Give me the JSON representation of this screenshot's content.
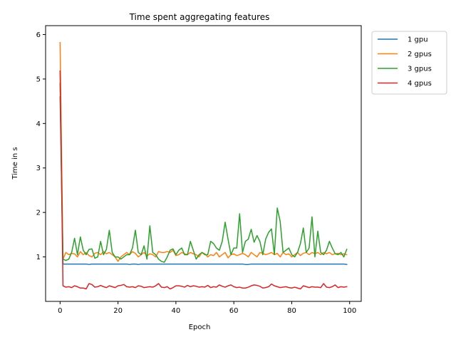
{
  "chart_data": {
    "type": "line",
    "title": "Time spent aggregating features",
    "xlabel": "Epoch",
    "ylabel": "Time in s",
    "xlim": [
      -5,
      104
    ],
    "ylim": [
      0,
      6.2
    ],
    "x_ticks": [
      0,
      20,
      40,
      60,
      80,
      100
    ],
    "y_ticks": [
      1,
      2,
      3,
      4,
      5,
      6
    ],
    "grid": false,
    "legend_position": "outside-top-right",
    "series": [
      {
        "name": "1 gpu",
        "color": "#1f77b4",
        "x": [
          0,
          1,
          2,
          3,
          4,
          5,
          6,
          7,
          8,
          9,
          10,
          11,
          12,
          13,
          14,
          15,
          16,
          17,
          18,
          19,
          20,
          21,
          22,
          23,
          24,
          25,
          26,
          27,
          28,
          29,
          30,
          31,
          32,
          33,
          34,
          35,
          36,
          37,
          38,
          39,
          40,
          41,
          42,
          43,
          44,
          45,
          46,
          47,
          48,
          49,
          50,
          51,
          52,
          53,
          54,
          55,
          56,
          57,
          58,
          59,
          60,
          61,
          62,
          63,
          64,
          65,
          66,
          67,
          68,
          69,
          70,
          71,
          72,
          73,
          74,
          75,
          76,
          77,
          78,
          79,
          80,
          81,
          82,
          83,
          84,
          85,
          86,
          87,
          88,
          89,
          90,
          91,
          92,
          93,
          94,
          95,
          96,
          97,
          98,
          99
        ],
        "values": [
          4.6,
          0.84,
          0.84,
          0.84,
          0.84,
          0.84,
          0.84,
          0.84,
          0.84,
          0.84,
          0.83,
          0.84,
          0.84,
          0.84,
          0.84,
          0.84,
          0.84,
          0.84,
          0.84,
          0.84,
          0.84,
          0.84,
          0.84,
          0.84,
          0.83,
          0.84,
          0.84,
          0.83,
          0.84,
          0.84,
          0.84,
          0.84,
          0.84,
          0.84,
          0.84,
          0.84,
          0.84,
          0.84,
          0.84,
          0.84,
          0.84,
          0.84,
          0.84,
          0.84,
          0.84,
          0.84,
          0.84,
          0.84,
          0.84,
          0.84,
          0.84,
          0.84,
          0.84,
          0.84,
          0.84,
          0.84,
          0.84,
          0.84,
          0.84,
          0.84,
          0.84,
          0.84,
          0.84,
          0.84,
          0.83,
          0.83,
          0.84,
          0.84,
          0.84,
          0.84,
          0.84,
          0.84,
          0.84,
          0.84,
          0.84,
          0.84,
          0.84,
          0.84,
          0.84,
          0.84,
          0.84,
          0.84,
          0.84,
          0.84,
          0.84,
          0.84,
          0.84,
          0.84,
          0.84,
          0.84,
          0.84,
          0.84,
          0.84,
          0.84,
          0.84,
          0.84,
          0.84,
          0.84,
          0.84,
          0.83
        ]
      },
      {
        "name": "2 gpus",
        "color": "#ff7f0e",
        "x": [
          0,
          1,
          2,
          3,
          4,
          5,
          6,
          7,
          8,
          9,
          10,
          11,
          12,
          13,
          14,
          15,
          16,
          17,
          18,
          19,
          20,
          21,
          22,
          23,
          24,
          25,
          26,
          27,
          28,
          29,
          30,
          31,
          32,
          33,
          34,
          35,
          36,
          37,
          38,
          39,
          40,
          41,
          42,
          43,
          44,
          45,
          46,
          47,
          48,
          49,
          50,
          51,
          52,
          53,
          54,
          55,
          56,
          57,
          58,
          59,
          60,
          61,
          62,
          63,
          64,
          65,
          66,
          67,
          68,
          69,
          70,
          71,
          72,
          73,
          74,
          75,
          76,
          77,
          78,
          79,
          80,
          81,
          82,
          83,
          84,
          85,
          86,
          87,
          88,
          89,
          90,
          91,
          92,
          93,
          94,
          95,
          96,
          97,
          98,
          99
        ],
        "values": [
          5.82,
          0.95,
          1.1,
          1.05,
          1.08,
          1.07,
          1.0,
          1.12,
          1.05,
          1.1,
          1.03,
          1.0,
          1.08,
          1.1,
          1.05,
          1.12,
          1.07,
          1.1,
          1.05,
          1.0,
          0.9,
          1.0,
          1.05,
          1.1,
          1.05,
          1.12,
          1.08,
          1.0,
          1.05,
          1.1,
          1.02,
          1.07,
          1.05,
          1.0,
          1.12,
          1.1,
          1.1,
          1.12,
          1.1,
          1.15,
          1.03,
          1.05,
          1.1,
          1.07,
          1.05,
          1.1,
          1.07,
          1.05,
          1.0,
          1.1,
          1.07,
          1.0,
          1.05,
          1.03,
          1.1,
          1.0,
          1.05,
          1.1,
          0.98,
          1.05,
          1.07,
          1.03,
          1.05,
          1.08,
          1.05,
          1.0,
          1.1,
          1.05,
          1.0,
          1.1,
          1.08,
          1.05,
          1.07,
          1.1,
          1.05,
          1.08,
          1.0,
          1.1,
          1.05,
          1.07,
          1.0,
          1.05,
          1.1,
          1.03,
          1.08,
          1.1,
          1.05,
          1.1,
          1.07,
          1.1,
          1.05,
          1.1,
          1.07,
          1.1,
          1.05,
          1.07,
          1.08,
          1.05,
          1.07,
          1.05
        ]
      },
      {
        "name": "3 gpus",
        "color": "#2ca02c",
        "x": [
          0,
          1,
          2,
          3,
          4,
          5,
          6,
          7,
          8,
          9,
          10,
          11,
          12,
          13,
          14,
          15,
          16,
          17,
          18,
          19,
          20,
          21,
          22,
          23,
          24,
          25,
          26,
          27,
          28,
          29,
          30,
          31,
          32,
          33,
          34,
          35,
          36,
          37,
          38,
          39,
          40,
          41,
          42,
          43,
          44,
          45,
          46,
          47,
          48,
          49,
          50,
          51,
          52,
          53,
          54,
          55,
          56,
          57,
          58,
          59,
          60,
          61,
          62,
          63,
          64,
          65,
          66,
          67,
          68,
          69,
          70,
          71,
          72,
          73,
          74,
          75,
          76,
          77,
          78,
          79,
          80,
          81,
          82,
          83,
          84,
          85,
          86,
          87,
          88,
          89,
          90,
          91,
          92,
          93,
          94,
          95,
          96,
          97,
          98,
          99
        ],
        "values": [
          4.9,
          0.95,
          0.92,
          0.95,
          1.1,
          1.42,
          1.05,
          1.45,
          1.15,
          1.05,
          1.17,
          1.18,
          0.97,
          1.0,
          1.35,
          1.05,
          1.17,
          1.6,
          1.1,
          1.0,
          1.0,
          0.95,
          1.0,
          1.05,
          1.05,
          1.2,
          1.6,
          1.1,
          1.05,
          1.25,
          0.95,
          1.7,
          1.1,
          1.05,
          0.95,
          0.9,
          0.88,
          1.0,
          1.15,
          1.18,
          1.05,
          1.15,
          1.2,
          1.05,
          1.05,
          1.35,
          1.15,
          0.95,
          1.05,
          1.1,
          1.05,
          1.05,
          1.35,
          1.3,
          1.2,
          1.15,
          1.35,
          1.78,
          1.4,
          1.05,
          1.2,
          1.2,
          1.97,
          1.1,
          1.35,
          1.4,
          1.62,
          1.33,
          1.48,
          1.35,
          1.05,
          1.4,
          1.55,
          1.63,
          1.05,
          2.1,
          1.8,
          1.1,
          1.15,
          1.2,
          1.05,
          1.0,
          1.1,
          1.3,
          1.65,
          1.1,
          1.2,
          1.9,
          1.0,
          1.58,
          1.1,
          1.05,
          1.15,
          1.35,
          1.2,
          1.07,
          1.05,
          1.1,
          1.0,
          1.17
        ]
      },
      {
        "name": "4 gpus",
        "color": "#d62728",
        "x": [
          0,
          1,
          2,
          3,
          4,
          5,
          6,
          7,
          8,
          9,
          10,
          11,
          12,
          13,
          14,
          15,
          16,
          17,
          18,
          19,
          20,
          21,
          22,
          23,
          24,
          25,
          26,
          27,
          28,
          29,
          30,
          31,
          32,
          33,
          34,
          35,
          36,
          37,
          38,
          39,
          40,
          41,
          42,
          43,
          44,
          45,
          46,
          47,
          48,
          49,
          50,
          51,
          52,
          53,
          54,
          55,
          56,
          57,
          58,
          59,
          60,
          61,
          62,
          63,
          64,
          65,
          66,
          67,
          68,
          69,
          70,
          71,
          72,
          73,
          74,
          75,
          76,
          77,
          78,
          79,
          80,
          81,
          82,
          83,
          84,
          85,
          86,
          87,
          88,
          89,
          90,
          91,
          92,
          93,
          94,
          95,
          96,
          97,
          98,
          99
        ],
        "values": [
          5.18,
          0.35,
          0.32,
          0.33,
          0.31,
          0.35,
          0.33,
          0.3,
          0.3,
          0.28,
          0.4,
          0.38,
          0.32,
          0.33,
          0.36,
          0.33,
          0.31,
          0.35,
          0.33,
          0.31,
          0.35,
          0.36,
          0.38,
          0.33,
          0.32,
          0.33,
          0.31,
          0.35,
          0.34,
          0.31,
          0.32,
          0.33,
          0.32,
          0.35,
          0.4,
          0.32,
          0.31,
          0.33,
          0.28,
          0.31,
          0.35,
          0.35,
          0.34,
          0.32,
          0.36,
          0.33,
          0.35,
          0.34,
          0.32,
          0.33,
          0.32,
          0.36,
          0.31,
          0.33,
          0.32,
          0.37,
          0.34,
          0.32,
          0.35,
          0.37,
          0.33,
          0.31,
          0.32,
          0.3,
          0.3,
          0.32,
          0.35,
          0.37,
          0.36,
          0.34,
          0.3,
          0.31,
          0.33,
          0.39,
          0.35,
          0.33,
          0.31,
          0.32,
          0.33,
          0.31,
          0.3,
          0.32,
          0.3,
          0.28,
          0.35,
          0.33,
          0.31,
          0.33,
          0.32,
          0.32,
          0.31,
          0.4,
          0.32,
          0.31,
          0.33,
          0.37,
          0.31,
          0.33,
          0.32,
          0.33
        ]
      }
    ]
  }
}
